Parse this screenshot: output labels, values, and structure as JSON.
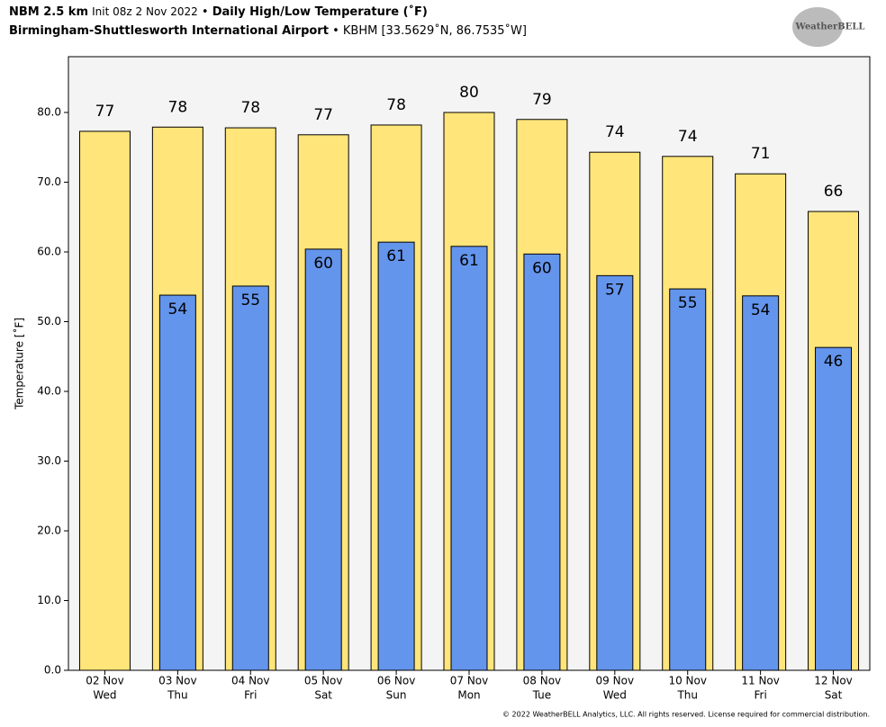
{
  "chart_data": {
    "type": "bar",
    "title": {
      "model": "NBM 2.5 km",
      "init": "Init 08z 2 Nov 2022",
      "separator": "•",
      "product": "Daily High/Low Temperature (˚F)"
    },
    "subtitle": {
      "station": "Birmingham-Shuttlesworth International Airport",
      "location": "KBHM [33.5629˚N, 86.7535˚W]"
    },
    "logo": "WeatherBELL",
    "ylabel": "Temperature [˚F]",
    "categories": [
      "02 Nov",
      "03 Nov",
      "04 Nov",
      "05 Nov",
      "06 Nov",
      "07 Nov",
      "08 Nov",
      "09 Nov",
      "10 Nov",
      "11 Nov",
      "12 Nov"
    ],
    "weekdays": [
      "Wed",
      "Thu",
      "Fri",
      "Sat",
      "Sun",
      "Mon",
      "Tue",
      "Wed",
      "Thu",
      "Fri",
      "Sat"
    ],
    "series": [
      {
        "color": "#ffe57a",
        "values": [
          77.3,
          77.9,
          77.8,
          76.8,
          78.2,
          80.0,
          79.0,
          74.3,
          73.7,
          71.2,
          65.8
        ],
        "value_labels": [
          "77",
          "78",
          "78",
          "77",
          "78",
          "80",
          "79",
          "74",
          "74",
          "71",
          "66"
        ]
      },
      {
        "color": "#6495ed",
        "values": [
          null,
          53.8,
          55.1,
          60.4,
          61.4,
          60.8,
          59.7,
          56.6,
          54.7,
          53.7,
          46.3
        ],
        "value_labels": [
          null,
          "54",
          "55",
          "60",
          "61",
          "61",
          "60",
          "57",
          "55",
          "54",
          "46"
        ]
      }
    ],
    "ylim": [
      0,
      88
    ],
    "yticks": [
      {
        "value": 0,
        "label": "0.0"
      },
      {
        "value": 10,
        "label": "10.0"
      },
      {
        "value": 20,
        "label": "20.0"
      },
      {
        "value": 30,
        "label": "30.0"
      },
      {
        "value": 40,
        "label": "40.0"
      },
      {
        "value": 50,
        "label": "50.0"
      },
      {
        "value": 60,
        "label": "60.0"
      },
      {
        "value": 70,
        "label": "70.0"
      },
      {
        "value": 80,
        "label": "80.0"
      }
    ],
    "grid": false,
    "footer": "© 2022 WeatherBELL Analytics, LLC. All rights reserved. License required for commercial distribution."
  }
}
